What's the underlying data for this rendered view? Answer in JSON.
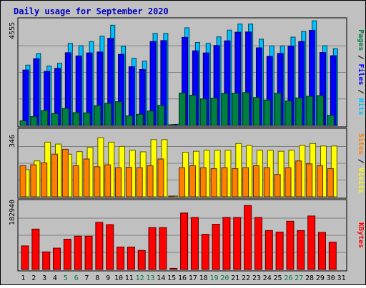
{
  "title": "Daily usage for September 2020",
  "colors": {
    "background": "#c0c0c0",
    "title": "#0000c0",
    "hits": "#00c0ff",
    "files": "#0000ff",
    "pages": "#008040",
    "visits": "#ffff00",
    "sites": "#ff8000",
    "kbytes": "#ff0000",
    "weekend_day": "#008040",
    "weekday": "#000000"
  },
  "chart_data": {
    "type": "bar",
    "x": [
      1,
      2,
      3,
      4,
      5,
      6,
      7,
      8,
      9,
      10,
      11,
      12,
      13,
      14,
      15,
      16,
      17,
      18,
      19,
      20,
      21,
      22,
      23,
      24,
      25,
      26,
      27,
      28,
      29,
      30,
      31
    ],
    "x_labels": [
      "1",
      "2",
      "3",
      "4",
      "5",
      "6",
      "7",
      "8",
      "9",
      "10",
      "11",
      "12",
      "13",
      "14",
      "15",
      "16",
      "17",
      "18",
      "19",
      "20",
      "21",
      "22",
      "23",
      "24",
      "25",
      "26",
      "27",
      "28",
      "29",
      "30",
      "31"
    ],
    "weekend_days": [
      5,
      6,
      12,
      13,
      19,
      20,
      26,
      27
    ],
    "panels": [
      {
        "name": "hits-files-pages",
        "ymax_label": "4555",
        "ymax": 4555,
        "side_legend": [
          "Pages",
          "Files",
          "Hits"
        ],
        "series": [
          {
            "name": "Hits",
            "values": [
              2590,
              3080,
              2550,
              2670,
              3520,
              3420,
              3600,
              3830,
              4300,
              3400,
              2880,
              2760,
              3950,
              3950,
              50,
              4190,
              3560,
              3520,
              3800,
              4090,
              4350,
              4350,
              3700,
              3410,
              3410,
              3790,
              4030,
              4490,
              3420,
              3290,
              0
            ]
          },
          {
            "name": "Files",
            "values": [
              2380,
              2860,
              2320,
              2450,
              3120,
              2980,
              3110,
              3150,
              3740,
              3050,
              2520,
              2400,
              3600,
              3640,
              40,
              3780,
              3200,
              3110,
              3430,
              3630,
              4000,
              4010,
              3330,
              2960,
              3090,
              3400,
              3600,
              4080,
              3130,
              2990,
              0
            ]
          },
          {
            "name": "Pages",
            "values": [
              200,
              380,
              640,
              510,
              730,
              550,
              540,
              850,
              950,
              1020,
              410,
              480,
              620,
              860,
              20,
              1390,
              1300,
              1140,
              1170,
              1370,
              1380,
              1410,
              1200,
              1090,
              1380,
              1050,
              1180,
              1250,
              1280,
              430,
              0
            ]
          }
        ]
      },
      {
        "name": "visits-sites",
        "ymax_label": "346",
        "ymax": 346,
        "side_legend": [
          "Sites",
          "Visits"
        ],
        "series": [
          {
            "name": "Visits",
            "values": [
              140,
              185,
              282,
              272,
              220,
              233,
              255,
              305,
              282,
              260,
              240,
              232,
              295,
              295,
              4,
              230,
              235,
              240,
              240,
              240,
              275,
              265,
              240,
              240,
              235,
              240,
              265,
              275,
              262,
              262,
              0
            ]
          },
          {
            "name": "Sites",
            "values": [
              160,
              165,
              175,
              220,
              245,
              160,
              195,
              155,
              165,
              150,
              152,
              150,
              160,
              195,
              2,
              150,
              160,
              150,
              145,
              150,
              145,
              150,
              160,
              150,
              115,
              150,
              185,
              170,
              160,
              145,
              0
            ]
          }
        ]
      },
      {
        "name": "kbytes",
        "ymax_label": "182940",
        "ymax": 182940,
        "side_legend": [
          "KBytes"
        ],
        "series": [
          {
            "name": "KBytes",
            "values": [
              63000,
              108000,
              47000,
              57000,
              81000,
              89000,
              89000,
              126000,
              120000,
              60000,
              60000,
              51000,
              112000,
              112000,
              3000,
              151000,
              139000,
              94000,
              121000,
              139000,
              139000,
              171000,
              139000,
              104000,
              100000,
              129000,
              104000,
              143000,
              99000,
              73000,
              0
            ]
          }
        ]
      }
    ]
  }
}
